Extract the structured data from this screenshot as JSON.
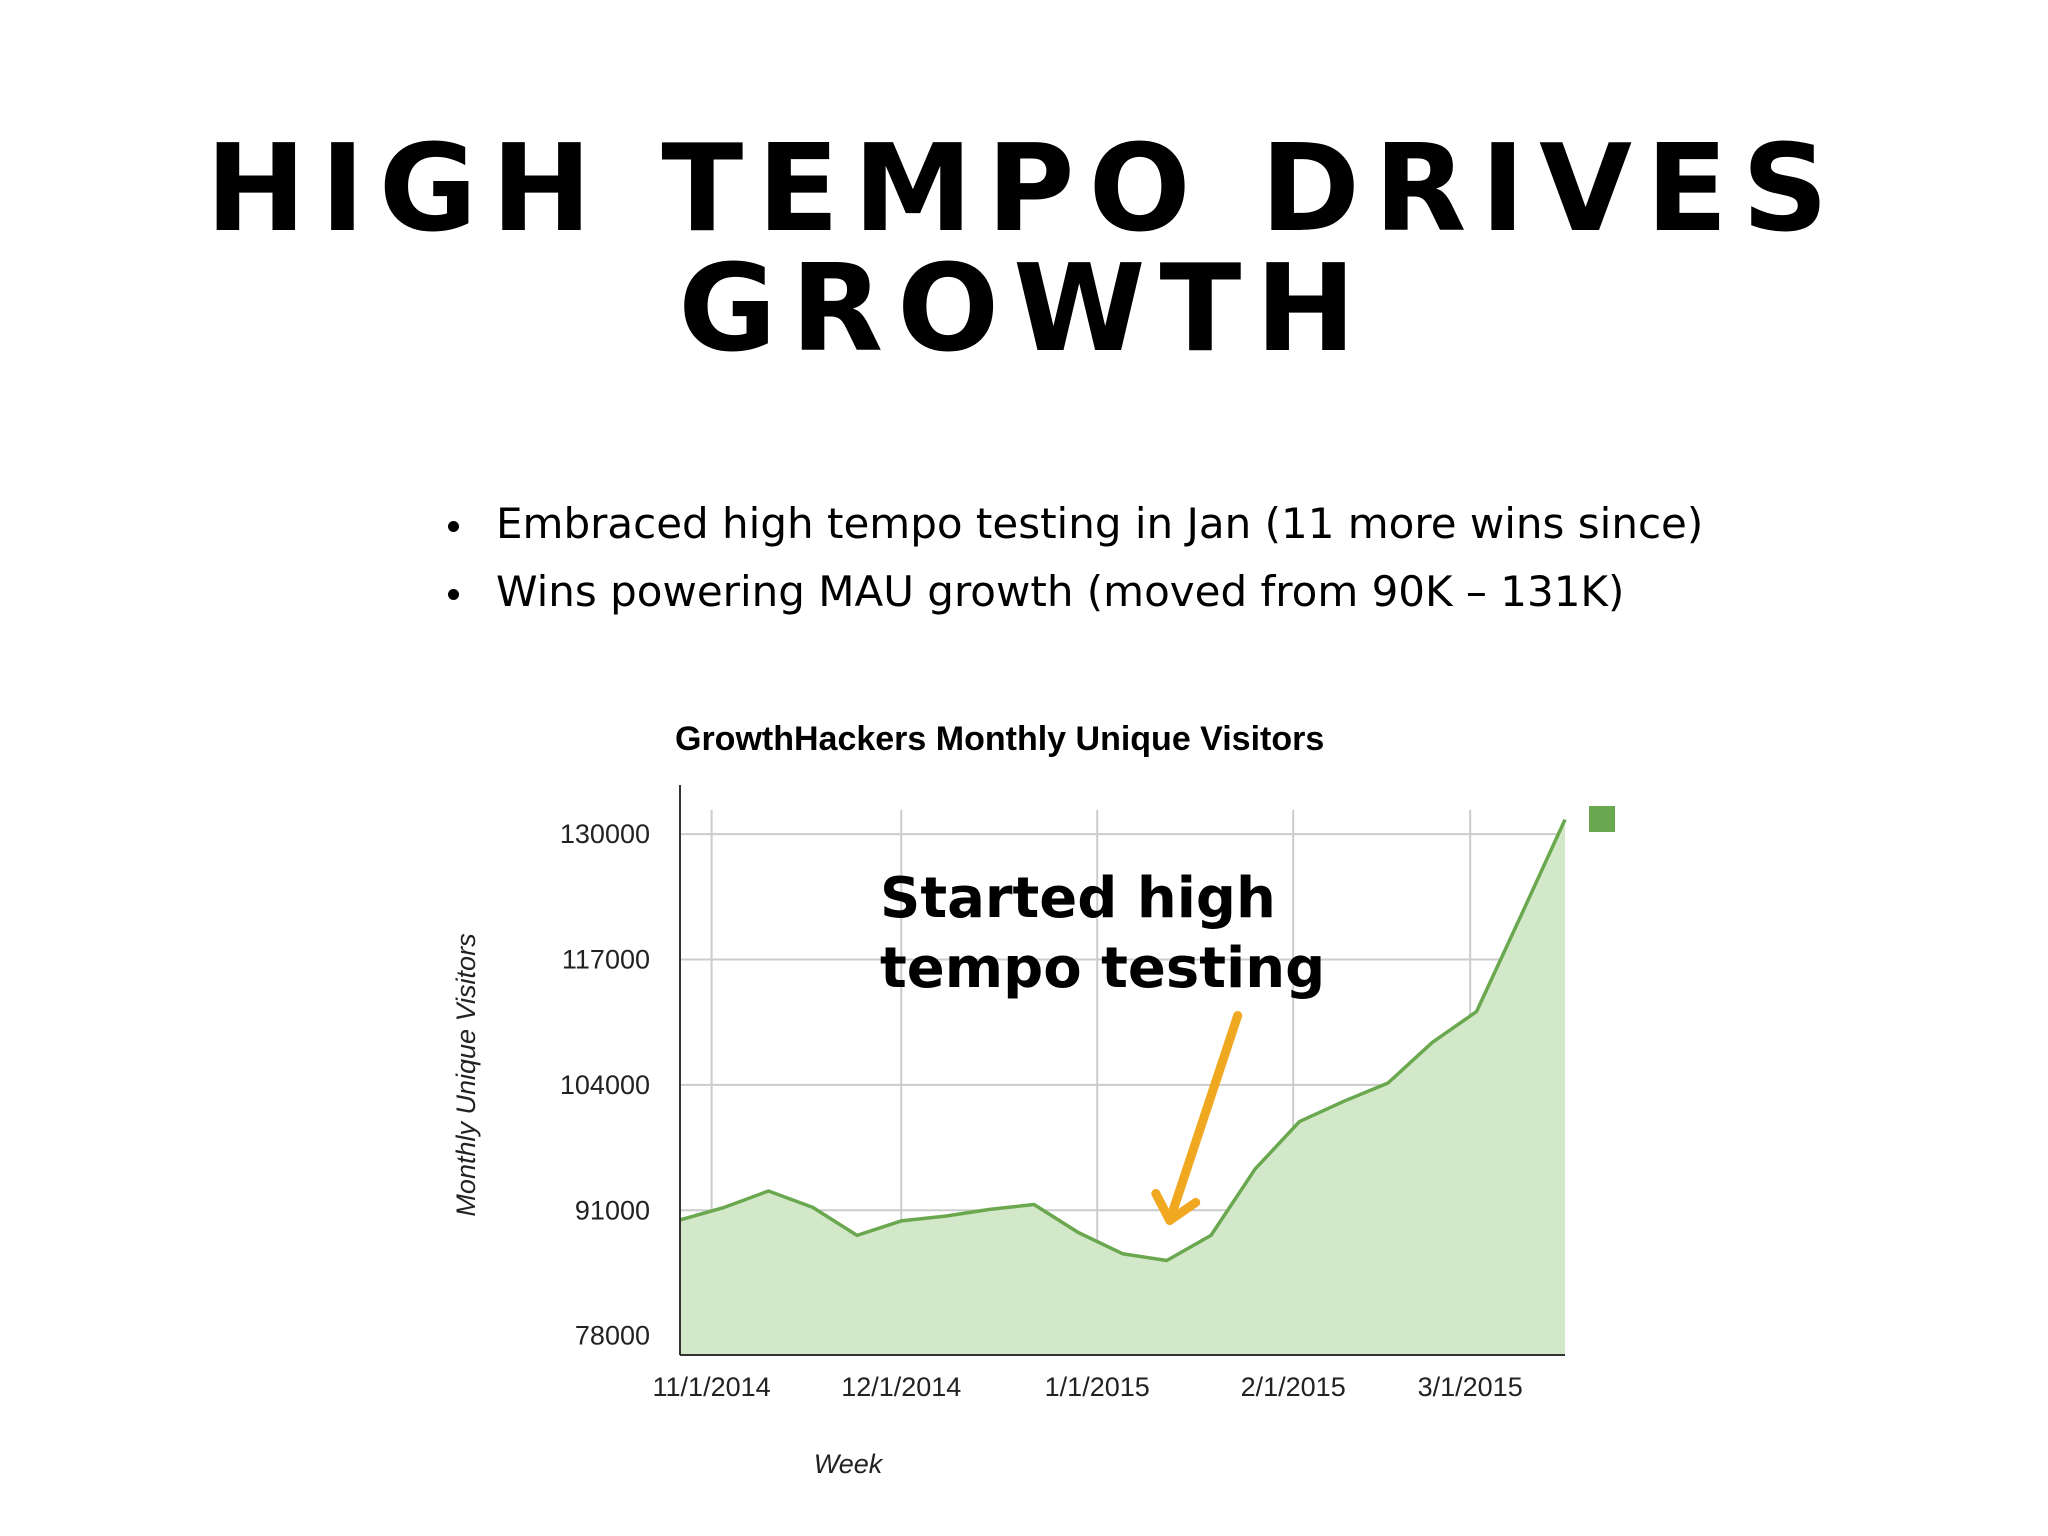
{
  "slide": {
    "title_line1": "HIGH TEMPO DRIVES",
    "title_line2": "GROWTH",
    "bullets": [
      "Embraced high tempo testing in Jan (11 more wins since)",
      "Wins powering MAU growth (moved from 90K – 131K)"
    ]
  },
  "colors": {
    "line": "#6aa84f",
    "area": "#d3e8c9",
    "legend_swatch": "#6aa84f",
    "gridline": "#cccccc",
    "axis": "#333333",
    "arrow": "#f0a820"
  },
  "chart_data": {
    "type": "area",
    "title": "GrowthHackers Monthly Unique Visitors",
    "xlabel": "Week",
    "ylabel": "Monthly Unique Visitors",
    "ylim": [
      76000,
      132500
    ],
    "yticks": [
      78000,
      91000,
      104000,
      117000,
      130000
    ],
    "xlim": [
      "2014-10-27",
      "2015-03-16"
    ],
    "xticks": [
      "2014-11-01",
      "2014-12-01",
      "2015-01-01",
      "2015-02-01",
      "2015-03-01"
    ],
    "xtick_labels": [
      "11/1/2014",
      "12/1/2014",
      "1/1/2015",
      "2/1/2015",
      "3/1/2015"
    ],
    "grid": true,
    "legend": "top-right",
    "series": [
      {
        "x": [
          "2014-10-27",
          "2014-11-03",
          "2014-11-10",
          "2014-11-17",
          "2014-11-24",
          "2014-12-01",
          "2014-12-08",
          "2014-12-15",
          "2014-12-22",
          "2014-12-29",
          "2015-01-05",
          "2015-01-12",
          "2015-01-19",
          "2015-01-26",
          "2015-02-02",
          "2015-02-09",
          "2015-02-16",
          "2015-02-23",
          "2015-03-02",
          "2015-03-09",
          "2015-03-16"
        ],
        "values": [
          90000,
          91300,
          93000,
          91300,
          88400,
          89900,
          90400,
          91100,
          91600,
          88700,
          86500,
          85800,
          88400,
          95300,
          100200,
          102300,
          104200,
          108400,
          111600,
          121500,
          131500
        ]
      }
    ],
    "annotations": [
      {
        "text_line1": "Started high",
        "text_line2": "tempo testing",
        "points_to": "2015-01-12"
      }
    ]
  }
}
